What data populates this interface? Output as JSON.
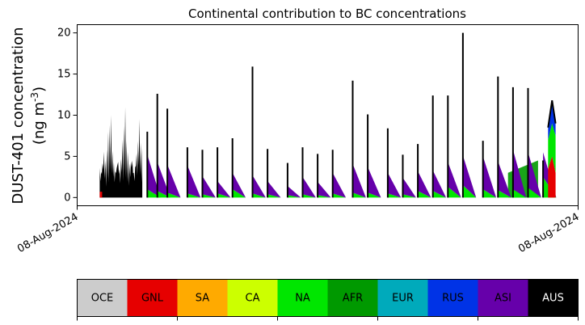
{
  "chart_data": {
    "type": "area",
    "title": "Continental contribution to BC concentrations",
    "ylabel_line1": "DUST-401 concentration",
    "ylabel_line2": "(ng m$^{-3}$)",
    "ylim": [
      -1,
      21
    ],
    "yticks": [
      0,
      5,
      10,
      15,
      20
    ],
    "xtick_labels": [
      "08-Aug-2024",
      "08-Aug-2024"
    ],
    "stack_order": [
      "OCE",
      "GNL",
      "SA",
      "CA",
      "NA",
      "AFR",
      "EUR",
      "RUS",
      "ASI",
      "AUS"
    ],
    "spikes": [
      {
        "x": 0.14,
        "total": 8.0,
        "ASI": 4.2,
        "NA": 1.0
      },
      {
        "x": 0.16,
        "total": 12.6,
        "ASI": 3.5,
        "NA": 0.8
      },
      {
        "x": 0.18,
        "total": 10.8,
        "ASI": 3.4,
        "NA": 0.6
      },
      {
        "x": 0.22,
        "total": 6.1,
        "ASI": 3.4,
        "NA": 0.5
      },
      {
        "x": 0.25,
        "total": 5.8,
        "ASI": 2.2,
        "NA": 0.4
      },
      {
        "x": 0.28,
        "total": 6.1,
        "ASI": 1.5,
        "NA": 0.5
      },
      {
        "x": 0.31,
        "total": 7.2,
        "ASI": 2.0,
        "NA": 1.0
      },
      {
        "x": 0.35,
        "total": 15.9,
        "ASI": 2.2,
        "NA": 0.5
      },
      {
        "x": 0.38,
        "total": 5.9,
        "ASI": 1.6,
        "NA": 0.4
      },
      {
        "x": 0.42,
        "total": 4.2,
        "ASI": 1.1,
        "NA": 0.3
      },
      {
        "x": 0.45,
        "total": 6.1,
        "ASI": 2.1,
        "NA": 0.4
      },
      {
        "x": 0.48,
        "total": 5.3,
        "ASI": 1.6,
        "NA": 0.3
      },
      {
        "x": 0.51,
        "total": 5.8,
        "ASI": 2.5,
        "NA": 0.5
      },
      {
        "x": 0.55,
        "total": 14.2,
        "ASI": 3.5,
        "NA": 0.6
      },
      {
        "x": 0.58,
        "total": 10.1,
        "ASI": 3.1,
        "NA": 0.6
      },
      {
        "x": 0.62,
        "total": 8.4,
        "ASI": 2.5,
        "NA": 0.5
      },
      {
        "x": 0.65,
        "total": 5.2,
        "ASI": 2.0,
        "NA": 0.4
      },
      {
        "x": 0.68,
        "total": 6.5,
        "ASI": 2.4,
        "NA": 0.8
      },
      {
        "x": 0.71,
        "total": 12.4,
        "ASI": 2.5,
        "NA": 0.8
      },
      {
        "x": 0.74,
        "total": 12.4,
        "ASI": 3.0,
        "NA": 1.3
      },
      {
        "x": 0.77,
        "total": 20.0,
        "ASI": 3.6,
        "NA": 1.5
      },
      {
        "x": 0.81,
        "total": 6.9,
        "ASI": 4.0,
        "NA": 1.0
      },
      {
        "x": 0.84,
        "total": 14.7,
        "ASI": 3.5,
        "NA": 0.9
      },
      {
        "x": 0.87,
        "total": 13.4,
        "ASI": 4.8,
        "NA": 1.0
      },
      {
        "x": 0.9,
        "total": 13.3,
        "ASI": 4.3,
        "NA": 1.2
      },
      {
        "x": 0.93,
        "total": 4.5,
        "ASI": 3.0,
        "NA": 2.5
      }
    ],
    "colorbar": [
      {
        "label": "OCE",
        "color": "#cccccc",
        "text_color": "#000000"
      },
      {
        "label": "GNL",
        "color": "#e60000",
        "text_color": "#000000"
      },
      {
        "label": "SA",
        "color": "#ffaa00",
        "text_color": "#000000"
      },
      {
        "label": "CA",
        "color": "#ccff00",
        "text_color": "#000000"
      },
      {
        "label": "NA",
        "color": "#00e600",
        "text_color": "#000000"
      },
      {
        "label": "AFR",
        "color": "#009900",
        "text_color": "#000000"
      },
      {
        "label": "EUR",
        "color": "#00aabb",
        "text_color": "#000000"
      },
      {
        "label": "RUS",
        "color": "#0033e6",
        "text_color": "#000000"
      },
      {
        "label": "ASI",
        "color": "#6600aa",
        "text_color": "#000000"
      },
      {
        "label": "AUS",
        "color": "#000000",
        "text_color": "#ffffff"
      }
    ]
  }
}
